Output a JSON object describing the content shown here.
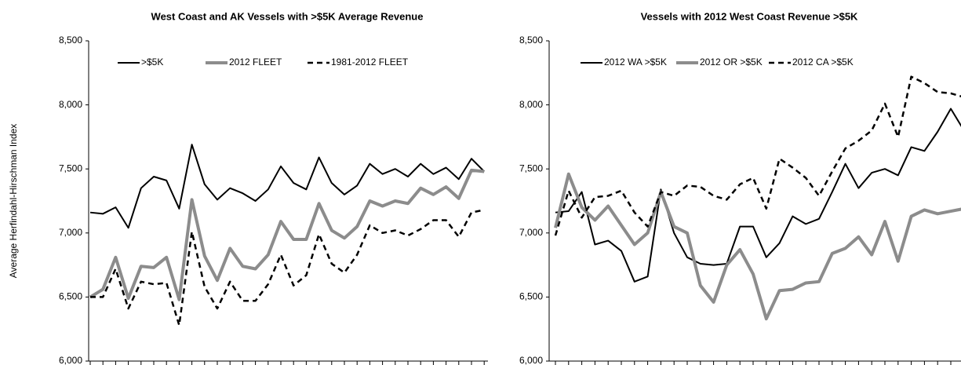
{
  "chart_data": [
    {
      "type": "line",
      "title": "West Coast and AK Vessels with >$5K Average Revenue",
      "y_label": "Average Herfindahl-Hirschman Index",
      "categories": [
        null,
        null,
        null,
        null,
        null,
        null,
        null,
        null,
        null,
        null,
        null,
        null,
        null,
        null,
        null,
        null,
        null,
        null,
        null,
        null,
        null,
        null,
        null,
        null,
        null,
        null,
        null,
        null,
        null,
        null,
        null,
        null
      ],
      "ylim": [
        6000,
        8500
      ],
      "yticks": [
        {
          "value": 6000,
          "label": "6,000"
        },
        {
          "value": 6500,
          "label": "6,500"
        },
        {
          "value": 7000,
          "label": "7,000"
        },
        {
          "value": 7500,
          "label": "7,500"
        },
        {
          "value": 8000,
          "label": "8,000"
        },
        {
          "value": 8500,
          "label": "8,500"
        }
      ],
      "series": [
        {
          "name": ">$5K",
          "color": "#000000",
          "style": "solid",
          "values": [
            7160,
            7150,
            7200,
            7040,
            7350,
            7440,
            7410,
            7190,
            7690,
            7380,
            7260,
            7350,
            7310,
            7250,
            7340,
            7520,
            7390,
            7340,
            7590,
            7390,
            7300,
            7370,
            7540,
            7460,
            7500,
            7440,
            7540,
            7460,
            7510,
            7420,
            7580,
            7480
          ]
        },
        {
          "name": "2012 FLEET",
          "color": "#8c8c8c",
          "style": "thick",
          "values": [
            6500,
            6560,
            6810,
            6490,
            6740,
            6730,
            6810,
            6480,
            7260,
            6820,
            6630,
            6880,
            6740,
            6720,
            6830,
            7090,
            6950,
            6950,
            7230,
            7020,
            6960,
            7050,
            7250,
            7210,
            7250,
            7230,
            7350,
            7300,
            7360,
            7270,
            7490,
            7480
          ]
        },
        {
          "name": "1981-2012 FLEET",
          "color": "#000000",
          "style": "dashed",
          "values": [
            6500,
            6500,
            6720,
            6410,
            6620,
            6600,
            6610,
            6280,
            7010,
            6580,
            6410,
            6620,
            6470,
            6470,
            6600,
            6830,
            6590,
            6670,
            6990,
            6760,
            6690,
            6830,
            7060,
            7000,
            7020,
            6980,
            7030,
            7100,
            7100,
            6970,
            7160,
            7180
          ]
        }
      ]
    },
    {
      "type": "line",
      "title": "Vessels with 2012 West Coast Revenue >$5K",
      "categories": [
        null,
        null,
        null,
        null,
        null,
        null,
        null,
        null,
        null,
        null,
        null,
        null,
        null,
        null,
        null,
        null,
        null,
        null,
        null,
        null,
        null,
        null,
        null,
        null,
        null,
        null,
        null,
        null,
        null,
        null,
        null,
        null
      ],
      "ylim": [
        6000,
        8500
      ],
      "yticks": [
        {
          "value": 6000,
          "label": "6,000"
        },
        {
          "value": 6500,
          "label": "6,500"
        },
        {
          "value": 7000,
          "label": "7,000"
        },
        {
          "value": 7500,
          "label": "7,500"
        },
        {
          "value": 8000,
          "label": "8,000"
        },
        {
          "value": 8500,
          "label": "8,500"
        }
      ],
      "series": [
        {
          "name": "2012 WA >$5K",
          "color": "#000000",
          "style": "solid",
          "values": [
            7160,
            7170,
            7320,
            6910,
            6940,
            6860,
            6620,
            6660,
            7340,
            7000,
            6810,
            6760,
            6750,
            6760,
            7050,
            7050,
            6810,
            6920,
            7130,
            7070,
            7110,
            7320,
            7540,
            7350,
            7470,
            7500,
            7450,
            7670,
            7640,
            7790,
            7970,
            7800
          ]
        },
        {
          "name": "2012 OR >$5K",
          "color": "#8c8c8c",
          "style": "thick",
          "values": [
            7040,
            7460,
            7200,
            7100,
            7210,
            7060,
            6910,
            7000,
            7320,
            7050,
            7000,
            6590,
            6460,
            6750,
            6870,
            6680,
            6330,
            6550,
            6560,
            6610,
            6620,
            6840,
            6880,
            6970,
            6830,
            7090,
            6780,
            7130,
            7180,
            7150,
            7170,
            7190
          ]
        },
        {
          "name": "2012 CA >$5K",
          "color": "#000000",
          "style": "dashed",
          "values": [
            6980,
            7330,
            7120,
            7280,
            7290,
            7330,
            7160,
            7050,
            7320,
            7290,
            7370,
            7360,
            7290,
            7260,
            7380,
            7430,
            7190,
            7580,
            7510,
            7430,
            7290,
            7480,
            7660,
            7720,
            7800,
            8010,
            7750,
            8220,
            8170,
            8100,
            8090,
            8060
          ]
        }
      ]
    }
  ]
}
